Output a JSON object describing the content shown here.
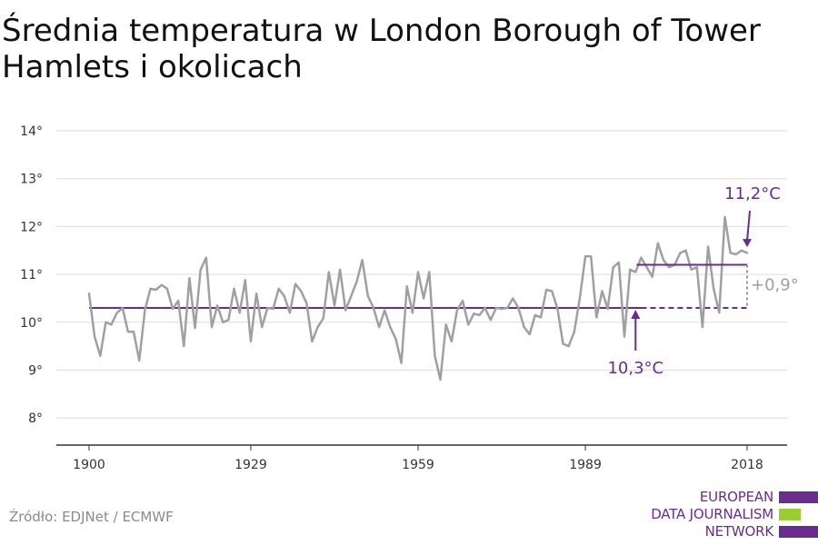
{
  "title": "Średnia temperatura w London Borough of Tower Hamlets i okolicach",
  "source": "Źródło: EDJNet / ECMWF",
  "logo": {
    "lines": [
      "EUROPEAN",
      "DATA JOURNALISM",
      "NETWORK"
    ]
  },
  "colors": {
    "series": "#a0a0a0",
    "accent": "#6a2c8e",
    "grid": "#dddddd",
    "logo_green": "#9acd32"
  },
  "chart_data": {
    "type": "line",
    "title": "Średnia temperatura w London Borough of Tower Hamlets i okolicach",
    "xlabel": "",
    "ylabel": "",
    "ylim": [
      7.5,
      14.5
    ],
    "xlim": [
      1900,
      2018
    ],
    "grid": true,
    "y_ticks": [
      8,
      9,
      10,
      11,
      12,
      13,
      14
    ],
    "y_tick_labels": [
      "8°",
      "9°",
      "10°",
      "11°",
      "12°",
      "13°",
      "14°"
    ],
    "x_ticks": [
      1900,
      1929,
      1959,
      1989,
      2018
    ],
    "x_tick_labels": [
      "1900",
      "1929",
      "1959",
      "1989",
      "2018"
    ],
    "series": [
      {
        "x": [
          1900,
          1901,
          1902,
          1903,
          1904,
          1905,
          1906,
          1907,
          1908,
          1909,
          1910,
          1911,
          1912,
          1913,
          1914,
          1915,
          1916,
          1917,
          1918,
          1919,
          1920,
          1921,
          1922,
          1923,
          1924,
          1925,
          1926,
          1927,
          1928,
          1929,
          1930,
          1931,
          1932,
          1933,
          1934,
          1935,
          1936,
          1937,
          1938,
          1939,
          1940,
          1941,
          1942,
          1943,
          1944,
          1945,
          1946,
          1947,
          1948,
          1949,
          1950,
          1951,
          1952,
          1953,
          1954,
          1955,
          1956,
          1957,
          1958,
          1959,
          1960,
          1961,
          1962,
          1963,
          1964,
          1965,
          1966,
          1967,
          1968,
          1969,
          1970,
          1971,
          1972,
          1973,
          1974,
          1975,
          1976,
          1977,
          1978,
          1979,
          1980,
          1981,
          1982,
          1983,
          1984,
          1985,
          1986,
          1987,
          1988,
          1989,
          1990,
          1991,
          1992,
          1993,
          1994,
          1995,
          1996,
          1997,
          1998,
          1999,
          2000,
          2001,
          2002,
          2003,
          2004,
          2005,
          2006,
          2007,
          2008,
          2009,
          2010,
          2011,
          2012,
          2013,
          2014,
          2015,
          2016,
          2017,
          2018
        ],
        "values": [
          10.6,
          9.7,
          9.3,
          10.0,
          9.95,
          10.2,
          10.3,
          9.8,
          9.8,
          9.2,
          10.25,
          10.7,
          10.68,
          10.78,
          10.7,
          10.28,
          10.45,
          9.5,
          10.92,
          9.88,
          11.1,
          11.35,
          9.9,
          10.35,
          10.0,
          10.05,
          10.7,
          10.2,
          10.88,
          9.6,
          10.6,
          9.9,
          10.3,
          10.28,
          10.7,
          10.55,
          10.2,
          10.8,
          10.65,
          10.4,
          9.6,
          9.9,
          10.08,
          11.05,
          10.35,
          11.1,
          10.25,
          10.55,
          10.85,
          11.3,
          10.55,
          10.3,
          9.9,
          10.25,
          9.9,
          9.65,
          9.15,
          10.75,
          10.2,
          11.05,
          10.5,
          11.05,
          9.3,
          8.8,
          9.95,
          9.6,
          10.25,
          10.45,
          9.95,
          10.18,
          10.15,
          10.3,
          10.05,
          10.3,
          10.28,
          10.3,
          10.5,
          10.3,
          9.9,
          9.75,
          10.15,
          10.1,
          10.68,
          10.65,
          10.28,
          9.55,
          9.5,
          9.8,
          10.5,
          11.38,
          11.38,
          10.1,
          10.65,
          10.28,
          11.15,
          11.25,
          9.7,
          11.1,
          11.05,
          11.35,
          11.15,
          10.95,
          11.65,
          11.3,
          11.15,
          11.2,
          11.45,
          11.5,
          11.1,
          11.15,
          9.9,
          11.58,
          10.7,
          10.2,
          12.2,
          11.45,
          11.42,
          11.5,
          11.45
        ]
      }
    ],
    "reference_lines": [
      {
        "label": "10,3°C",
        "value": 10.3,
        "x_start": 1900,
        "x_end": 1999,
        "dashed_to": 2018
      },
      {
        "label": "11,2°C",
        "value": 11.2,
        "x_start": 1999,
        "x_end": 2018
      }
    ],
    "difference_label": "+0,9°",
    "annotations": {
      "baseline_label": "10,3°C",
      "recent_label": "11,2°C",
      "difference_label": "+0,9°"
    }
  }
}
